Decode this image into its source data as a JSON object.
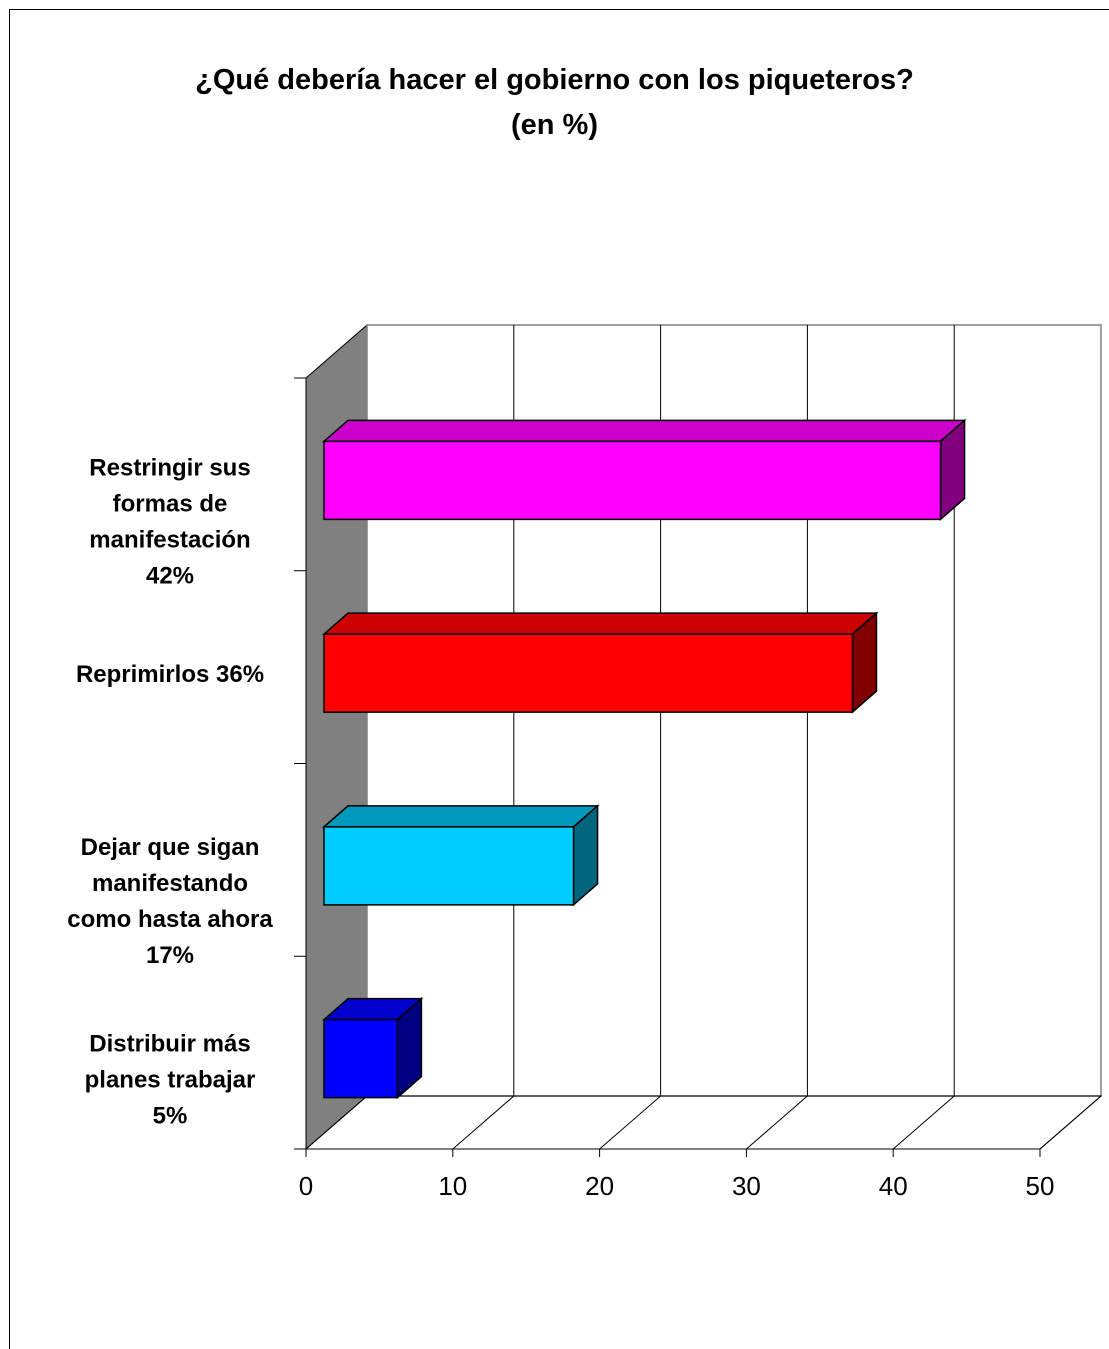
{
  "chart_data": {
    "type": "bar",
    "orientation": "horizontal",
    "three_d": true,
    "title_lines": [
      "¿Qué debería hacer el gobierno con los piqueteros?",
      "(en %)"
    ],
    "categories": [
      {
        "lines": [
          "Restringir sus",
          "formas de",
          "manifestación",
          "42%"
        ]
      },
      {
        "lines": [
          "Reprimirlos  36%"
        ]
      },
      {
        "lines": [
          "Dejar que sigan",
          "manifestando",
          "como hasta ahora",
          "17%"
        ]
      },
      {
        "lines": [
          "Distribuir más",
          "planes trabajar",
          "5%"
        ]
      }
    ],
    "values": [
      42,
      36,
      17,
      5
    ],
    "bar_colors": [
      {
        "front": "#ff00ff",
        "top": "#cc00cc",
        "side": "#800080"
      },
      {
        "front": "#ff0000",
        "top": "#cc0000",
        "side": "#800000"
      },
      {
        "front": "#00ccff",
        "top": "#0099bb",
        "side": "#006680"
      },
      {
        "front": "#0000ff",
        "top": "#0000cc",
        "side": "#000080"
      }
    ],
    "xlim": [
      0,
      50
    ],
    "xticks": [
      "0",
      "10",
      "20",
      "30",
      "40",
      "50"
    ],
    "grid": true,
    "wall_color": "#808080",
    "legend": "none"
  }
}
